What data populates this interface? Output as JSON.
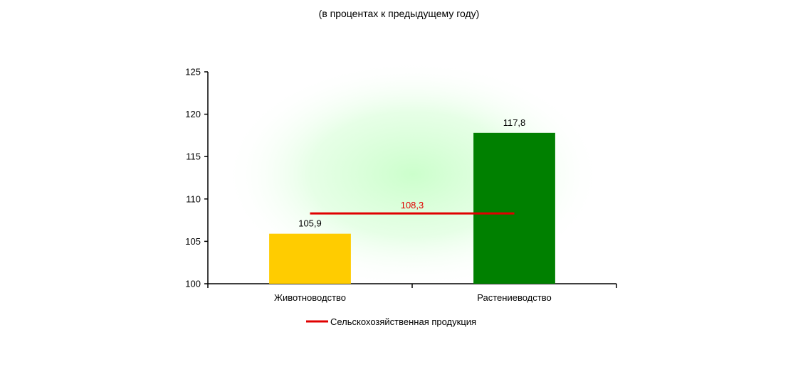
{
  "chart_data": {
    "type": "bar",
    "title": "",
    "subtitle": "(в процентах к предыдущему году)",
    "xlabel": "",
    "ylabel": "",
    "categories": [
      "Животноводство",
      "Растениеводство"
    ],
    "values": [
      105.9,
      117.8
    ],
    "value_labels": [
      "105,9",
      "117,8"
    ],
    "bar_colors": [
      "#FFCC00",
      "#008000"
    ],
    "ylim": [
      100,
      125
    ],
    "yticks": [
      100,
      105,
      110,
      115,
      120,
      125
    ],
    "grid": false,
    "reference_line": {
      "name": "Сельскохозяйственная продукция",
      "value": 108.3,
      "label": "108,3",
      "color": "#E00000"
    },
    "legend": {
      "placement": "bottom",
      "entries": [
        "Сельскохозяйственная продукция"
      ]
    },
    "background": "radial green glow"
  }
}
